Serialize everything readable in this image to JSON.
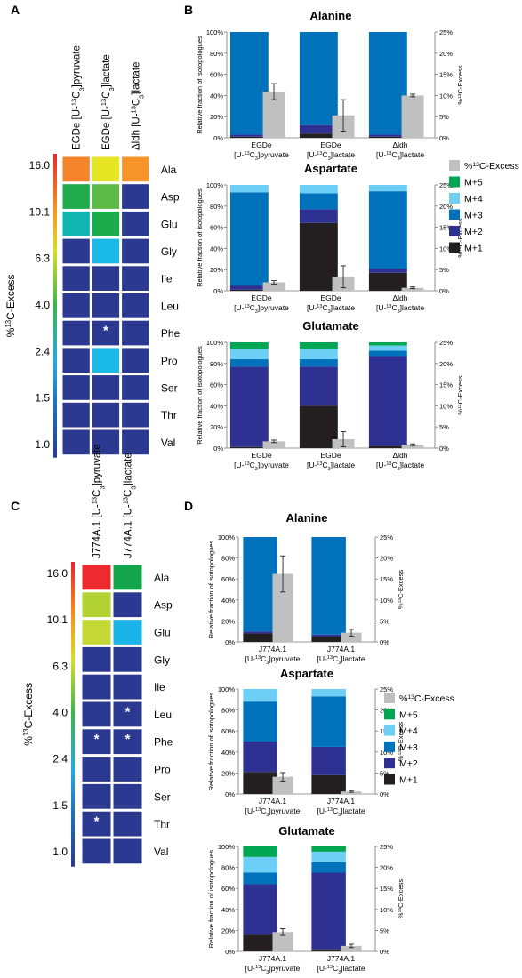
{
  "colors": {
    "M+1": "#231f20",
    "M+2": "#2e3192",
    "M+3": "#0072bc",
    "M+4": "#6dcff6",
    "M+5": "#00a651",
    "excess": "#c0c0c0",
    "heat_low": "#2b3990",
    "cell_gap": "#ffffff"
  },
  "chart_data": [
    {
      "panel": "A",
      "type": "heatmap",
      "columns": [
        "EGDe [U-13C3]pyruvate",
        "EGDe [U-13C3]lactate",
        "Δldh [U-13C3]lactate"
      ],
      "rows": [
        "Ala",
        "Asp",
        "Glu",
        "Gly",
        "Ile",
        "Leu",
        "Phe",
        "Pro",
        "Ser",
        "Thr",
        "Val"
      ],
      "colorbar_label": "%13C-Excess",
      "colorbar_ticks": [
        "16.0",
        "10.1",
        "6.3",
        "4.0",
        "2.4",
        "1.5",
        "1.0"
      ],
      "cell_colors": [
        [
          "#f6842a",
          "#e5e523",
          "#f6942a"
        ],
        [
          "#1faa4b",
          "#5bbb46",
          "#2b3990"
        ],
        [
          "#13b5b1",
          "#1bab4b",
          "#2b3990"
        ],
        [
          "#2b3990",
          "#19b9e8",
          "#2b3990"
        ],
        [
          "#2b3990",
          "#2b3990",
          "#2b3990"
        ],
        [
          "#2b3990",
          "#2b3990",
          "#2b3990"
        ],
        [
          "#2b3990",
          "#2b3990",
          "#2b3990"
        ],
        [
          "#2b3990",
          "#19b9e8",
          "#2b3990"
        ],
        [
          "#2b3990",
          "#2b3990",
          "#2b3990"
        ],
        [
          "#2b3990",
          "#2b3990",
          "#2b3990"
        ],
        [
          "#2b3990",
          "#2b3990",
          "#2b3990"
        ]
      ],
      "stars": [
        [
          6,
          1
        ]
      ]
    },
    {
      "panel": "C",
      "type": "heatmap",
      "columns": [
        "J774A.1 [U-13C3]pyruvate",
        "J774A.1 [U-13C3]lactate"
      ],
      "rows": [
        "Ala",
        "Asp",
        "Glu",
        "Gly",
        "Ile",
        "Leu",
        "Phe",
        "Pro",
        "Ser",
        "Thr",
        "Val"
      ],
      "colorbar_label": "%13C-Excess",
      "colorbar_ticks": [
        "16.0",
        "10.1",
        "6.3",
        "4.0",
        "2.4",
        "1.5",
        "1.0"
      ],
      "cell_colors": [
        [
          "#ed2a2e",
          "#13a54b"
        ],
        [
          "#b3d334",
          "#2b3990"
        ],
        [
          "#c3d735",
          "#19b5e8"
        ],
        [
          "#2b3990",
          "#2b3990"
        ],
        [
          "#2b3990",
          "#2b3990"
        ],
        [
          "#2b3990",
          "#2b3990"
        ],
        [
          "#2b3990",
          "#2b3990"
        ],
        [
          "#2b3990",
          "#2b3990"
        ],
        [
          "#2b3990",
          "#2b3990"
        ],
        [
          "#2b3990",
          "#2b3990"
        ],
        [
          "#2b3990",
          "#2b3990"
        ]
      ],
      "stars": [
        [
          5,
          1
        ],
        [
          6,
          0
        ],
        [
          6,
          1
        ],
        [
          9,
          0
        ]
      ]
    },
    {
      "panel": "B",
      "type": "bar",
      "title": "Alanine",
      "ylabel": "Relative fraction of isotopologues",
      "y2label": "%13C-Excess",
      "ylim": [
        0,
        100
      ],
      "y2lim": [
        0,
        25
      ],
      "groups": [
        {
          "line1": "EGDe",
          "line2": "[U-13C3]pyruvate",
          "stack": {
            "M+1": 1,
            "M+2": 2,
            "M+3": 97,
            "M+4": 0,
            "M+5": 0
          },
          "excess": 10.9,
          "err": 1.9
        },
        {
          "line1": "EGDe",
          "line2": "[U-13C3]lactate",
          "stack": {
            "M+1": 4,
            "M+2": 8,
            "M+3": 88,
            "M+4": 0,
            "M+5": 0
          },
          "excess": 5.3,
          "err": 3.7
        },
        {
          "line1": "Δldh",
          "line2": "[U-13C3]lactate",
          "stack": {
            "M+1": 1,
            "M+2": 2,
            "M+3": 97,
            "M+4": 0,
            "M+5": 0
          },
          "excess": 10.0,
          "err": 0.3
        }
      ]
    },
    {
      "panel": "B",
      "type": "bar",
      "title": "Aspartate",
      "ylabel": "Relative fraction of isotopologues",
      "y2label": "%13C-Excess",
      "ylim": [
        0,
        100
      ],
      "y2lim": [
        0,
        25
      ],
      "groups": [
        {
          "line1": "EGDe",
          "line2": "[U-13C3]pyruvate",
          "stack": {
            "M+1": 1,
            "M+2": 4,
            "M+3": 88,
            "M+4": 7,
            "M+5": 0
          },
          "excess": 2.0,
          "err": 0.4
        },
        {
          "line1": "EGDe",
          "line2": "[U-13C3]lactate",
          "stack": {
            "M+1": 64,
            "M+2": 13,
            "M+3": 15,
            "M+4": 8,
            "M+5": 0
          },
          "excess": 3.3,
          "err": 2.6
        },
        {
          "line1": "Δldh",
          "line2": "[U-13C3]lactate",
          "stack": {
            "M+1": 17,
            "M+2": 4,
            "M+3": 73,
            "M+4": 6,
            "M+5": 0
          },
          "excess": 0.7,
          "err": 0.2
        }
      ]
    },
    {
      "panel": "B",
      "type": "bar",
      "title": "Glutamate",
      "ylabel": "Relative fraction of isotopologues",
      "y2label": "%13C-Excess",
      "ylim": [
        0,
        100
      ],
      "y2lim": [
        0,
        25
      ],
      "groups": [
        {
          "line1": "EGDe",
          "line2": "[U-13C3]pyruvate",
          "stack": {
            "M+1": 1,
            "M+2": 76,
            "M+3": 7,
            "M+4": 10,
            "M+5": 6
          },
          "excess": 1.6,
          "err": 0.3
        },
        {
          "line1": "EGDe",
          "line2": "[U-13C3]lactate",
          "stack": {
            "M+1": 40,
            "M+2": 37,
            "M+3": 7,
            "M+4": 10,
            "M+5": 6
          },
          "excess": 2.1,
          "err": 1.8
        },
        {
          "line1": "Δldh",
          "line2": "[U-13C3]lactate",
          "stack": {
            "M+1": 2,
            "M+2": 85,
            "M+3": 5,
            "M+4": 5,
            "M+5": 3
          },
          "excess": 0.8,
          "err": 0.2
        }
      ]
    },
    {
      "panel": "D",
      "type": "bar",
      "title": "Alanine",
      "ylabel": "Relative fraction of isotopologues",
      "y2label": "%13C-Excess",
      "ylim": [
        0,
        100
      ],
      "y2lim": [
        0,
        25
      ],
      "groups": [
        {
          "line1": "J774A.1",
          "line2": "[U-13C3]pyruvate",
          "stack": {
            "M+1": 8,
            "M+2": 2,
            "M+3": 90,
            "M+4": 0,
            "M+5": 0
          },
          "excess": 16.2,
          "err": 4.3
        },
        {
          "line1": "J774A.1",
          "line2": "[U-13C3]lactate",
          "stack": {
            "M+1": 5,
            "M+2": 2,
            "M+3": 93,
            "M+4": 0,
            "M+5": 0
          },
          "excess": 2.2,
          "err": 0.8
        }
      ]
    },
    {
      "panel": "D",
      "type": "bar",
      "title": "Aspartate",
      "ylabel": "Relative fraction of isotopologues",
      "y2label": "%13C-Excess",
      "ylim": [
        0,
        100
      ],
      "y2lim": [
        0,
        25
      ],
      "groups": [
        {
          "line1": "J774A.1",
          "line2": "[U-13C3]pyruvate",
          "stack": {
            "M+1": 21,
            "M+2": 29,
            "M+3": 38,
            "M+4": 12,
            "M+5": 0
          },
          "excess": 4.1,
          "err": 1.0
        },
        {
          "line1": "J774A.1",
          "line2": "[U-13C3]lactate",
          "stack": {
            "M+1": 18,
            "M+2": 27,
            "M+3": 48,
            "M+4": 7,
            "M+5": 0
          },
          "excess": 0.6,
          "err": 0.2
        }
      ]
    },
    {
      "panel": "D",
      "type": "bar",
      "title": "Glutamate",
      "ylabel": "Relative fraction of isotopologues",
      "y2label": "%13C-Excess",
      "ylim": [
        0,
        100
      ],
      "y2lim": [
        0,
        25
      ],
      "groups": [
        {
          "line1": "J774A.1",
          "line2": "[U-13C3]pyruvate",
          "stack": {
            "M+1": 16,
            "M+2": 48,
            "M+3": 11,
            "M+4": 15,
            "M+5": 10
          },
          "excess": 4.6,
          "err": 0.8
        },
        {
          "line1": "J774A.1",
          "line2": "[U-13C3]lactate",
          "stack": {
            "M+1": 2,
            "M+2": 73,
            "M+3": 10,
            "M+4": 10,
            "M+5": 5
          },
          "excess": 1.3,
          "err": 0.4
        }
      ]
    }
  ],
  "panel_labels": [
    "A",
    "B",
    "C",
    "D"
  ],
  "legend": {
    "items": [
      "%13C-Excess",
      "M+5",
      "M+4",
      "M+3",
      "M+2",
      "M+1"
    ],
    "keys": [
      "excess",
      "M+5",
      "M+4",
      "M+3",
      "M+2",
      "M+1"
    ]
  },
  "y_ticks_left": [
    "0%",
    "20%",
    "40%",
    "60%",
    "80%",
    "100%"
  ],
  "y_ticks_right": [
    "0%",
    "5%",
    "10%",
    "15%",
    "20%",
    "25%"
  ]
}
